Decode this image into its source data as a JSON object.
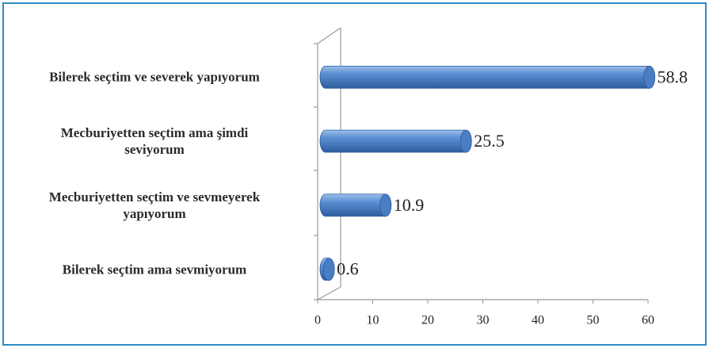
{
  "chart_data": {
    "type": "bar",
    "orientation": "horizontal",
    "categories": [
      "Bilerek seçtim ve severek yapıyorum",
      "Mecburiyetten seçtim ama şimdi\nseviyorum",
      "Mecburiyetten seçtim ve sevmeyerek\nyapıyorum",
      "Bilerek seçtim ama sevmiyorum"
    ],
    "values": [
      58.8,
      25.5,
      10.9,
      0.6
    ],
    "color": "#4a7ec4",
    "xlim": [
      0,
      60
    ],
    "xticks": [
      0,
      10,
      20,
      30,
      40,
      50,
      60
    ],
    "grid": false
  }
}
